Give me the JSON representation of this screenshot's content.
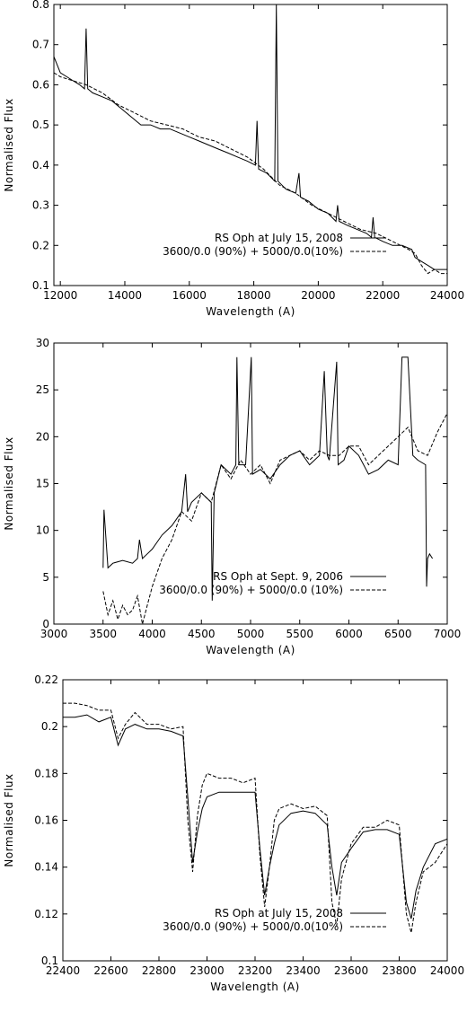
{
  "chart_data": [
    {
      "type": "line",
      "xlabel": "Wavelength (A)",
      "ylabel": "Normalised Flux",
      "xlim": [
        11800,
        24000
      ],
      "ylim": [
        0.1,
        0.8
      ],
      "xticks": [
        "12000",
        "14000",
        "16000",
        "18000",
        "20000",
        "22000",
        "24000"
      ],
      "yticks": [
        "0.1",
        "0.2",
        "0.3",
        "0.4",
        "0.5",
        "0.6",
        "0.7",
        "0.8"
      ],
      "legend_position": "bottom-right",
      "series": [
        {
          "name": "RS Oph at July 15, 2008",
          "style": "solid",
          "x": [
            11800,
            11900,
            12000,
            12200,
            12400,
            12600,
            12750,
            12800,
            12850,
            13000,
            13300,
            13600,
            13900,
            14200,
            14500,
            14800,
            15100,
            15400,
            15700,
            16000,
            16300,
            16600,
            16900,
            17200,
            17500,
            17800,
            18050,
            18100,
            18150,
            18400,
            18650,
            18700,
            18750,
            19000,
            19300,
            19400,
            19450,
            19700,
            20000,
            20300,
            20550,
            20600,
            20650,
            20900,
            21200,
            21500,
            21650,
            21700,
            21750,
            22000,
            22300,
            22600,
            22900,
            23000,
            23200,
            23400,
            23600,
            23800,
            24000
          ],
          "y": [
            0.67,
            0.65,
            0.63,
            0.62,
            0.61,
            0.6,
            0.59,
            0.74,
            0.59,
            0.58,
            0.57,
            0.56,
            0.54,
            0.52,
            0.5,
            0.5,
            0.49,
            0.49,
            0.48,
            0.47,
            0.46,
            0.45,
            0.44,
            0.43,
            0.42,
            0.41,
            0.4,
            0.51,
            0.39,
            0.38,
            0.36,
            0.8,
            0.36,
            0.34,
            0.33,
            0.38,
            0.32,
            0.31,
            0.29,
            0.28,
            0.26,
            0.3,
            0.26,
            0.25,
            0.24,
            0.23,
            0.22,
            0.27,
            0.22,
            0.21,
            0.2,
            0.2,
            0.19,
            0.17,
            0.16,
            0.15,
            0.14,
            0.14,
            0.14
          ]
        },
        {
          "name": "3600/0.0 (90%) + 5000/0.0(10%)",
          "style": "dashed",
          "x": [
            11800,
            12000,
            12400,
            12800,
            13300,
            13800,
            14300,
            14800,
            15300,
            15800,
            16300,
            16800,
            17300,
            17800,
            18300,
            18800,
            19300,
            19800,
            20300,
            20800,
            21300,
            21800,
            22300,
            22800,
            23000,
            23200,
            23400,
            23600,
            23800,
            24000
          ],
          "y": [
            0.63,
            0.62,
            0.61,
            0.6,
            0.58,
            0.55,
            0.53,
            0.51,
            0.5,
            0.49,
            0.47,
            0.46,
            0.44,
            0.42,
            0.39,
            0.35,
            0.33,
            0.3,
            0.28,
            0.26,
            0.24,
            0.23,
            0.21,
            0.19,
            0.18,
            0.15,
            0.13,
            0.14,
            0.13,
            0.13
          ]
        }
      ]
    },
    {
      "type": "line",
      "xlabel": "Wavelength (A)",
      "ylabel": "Normalised Flux",
      "xlim": [
        3000,
        7000
      ],
      "ylim": [
        0,
        30
      ],
      "xticks": [
        "3000",
        "3500",
        "4000",
        "4500",
        "5000",
        "5500",
        "6000",
        "6500",
        "7000"
      ],
      "yticks": [
        "0",
        "5",
        "10",
        "15",
        "20",
        "25",
        "30"
      ],
      "legend_position": "bottom-right",
      "series": [
        {
          "name": "RS Oph at Sept. 9, 2006",
          "style": "solid",
          "x": [
            3500,
            3510,
            3550,
            3600,
            3700,
            3800,
            3850,
            3870,
            3900,
            3950,
            4000,
            4100,
            4200,
            4300,
            4340,
            4360,
            4400,
            4500,
            4600,
            4610,
            4630,
            4700,
            4800,
            4850,
            4861,
            4880,
            4950,
            5007,
            5020,
            5100,
            5200,
            5300,
            5400,
            5500,
            5600,
            5700,
            5750,
            5780,
            5800,
            5876,
            5890,
            5950,
            6000,
            6100,
            6200,
            6300,
            6400,
            6500,
            6540,
            6600,
            6650,
            6700,
            6780,
            6790,
            6800,
            6820,
            6850
          ],
          "y": [
            6,
            12.2,
            6,
            6.5,
            6.8,
            6.5,
            7,
            9,
            7,
            7.5,
            8,
            9.5,
            10.5,
            12,
            16,
            12,
            13,
            14,
            13,
            2.5,
            14,
            17,
            16,
            17,
            28.5,
            17,
            17,
            28.5,
            16,
            16.5,
            15.5,
            17,
            18,
            18.5,
            17,
            18,
            27,
            18,
            17.5,
            28,
            17,
            17.5,
            19,
            18,
            16,
            16.5,
            17.5,
            17,
            28.5,
            28.5,
            18,
            17.5,
            17,
            4,
            7,
            7.5,
            7
          ]
        },
        {
          "name": "3600/0.0 (90%) + 5000/0.0 (10%)",
          "style": "dashed",
          "x": [
            3500,
            3550,
            3600,
            3650,
            3700,
            3750,
            3800,
            3850,
            3900,
            3950,
            4000,
            4100,
            4200,
            4300,
            4400,
            4500,
            4600,
            4700,
            4800,
            4900,
            5000,
            5100,
            5200,
            5300,
            5400,
            5500,
            5600,
            5700,
            5800,
            5900,
            6000,
            6100,
            6200,
            6300,
            6400,
            6500,
            6600,
            6700,
            6800,
            6900,
            7000
          ],
          "y": [
            3.5,
            1,
            2.5,
            0.5,
            2,
            1,
            1.5,
            3,
            0,
            2,
            4,
            7,
            9,
            12,
            11,
            14,
            13,
            17,
            15.5,
            17.5,
            16,
            17,
            15,
            17.5,
            18,
            18.5,
            17.5,
            18.5,
            18,
            18,
            19,
            19,
            17,
            18,
            19,
            20,
            21,
            18.5,
            18,
            20.5,
            22.5
          ]
        }
      ]
    },
    {
      "type": "line",
      "xlabel": "Wavelength (A)",
      "ylabel": "Normalised Flux",
      "xlim": [
        22400,
        24000
      ],
      "ylim": [
        0.1,
        0.22
      ],
      "xticks": [
        "22400",
        "22600",
        "22800",
        "23000",
        "23200",
        "23400",
        "23600",
        "23800",
        "24000"
      ],
      "yticks": [
        "0.1",
        "0.12",
        "0.14",
        "0.16",
        "0.18",
        "0.2",
        "0.22"
      ],
      "legend_position": "bottom-right",
      "series": [
        {
          "name": "RS Oph at July 15, 2008",
          "style": "solid",
          "x": [
            22400,
            22450,
            22500,
            22550,
            22600,
            22630,
            22660,
            22700,
            22750,
            22800,
            22850,
            22900,
            22920,
            22940,
            22960,
            22980,
            23000,
            23050,
            23100,
            23150,
            23200,
            23220,
            23240,
            23260,
            23280,
            23300,
            23350,
            23400,
            23450,
            23500,
            23520,
            23540,
            23560,
            23600,
            23650,
            23700,
            23750,
            23800,
            23830,
            23850,
            23870,
            23900,
            23950,
            24000
          ],
          "y": [
            0.204,
            0.204,
            0.205,
            0.202,
            0.204,
            0.192,
            0.199,
            0.201,
            0.199,
            0.199,
            0.198,
            0.196,
            0.17,
            0.142,
            0.155,
            0.165,
            0.17,
            0.172,
            0.172,
            0.172,
            0.172,
            0.148,
            0.128,
            0.14,
            0.15,
            0.158,
            0.163,
            0.164,
            0.163,
            0.158,
            0.14,
            0.128,
            0.142,
            0.148,
            0.155,
            0.156,
            0.156,
            0.154,
            0.125,
            0.118,
            0.13,
            0.14,
            0.15,
            0.152
          ]
        },
        {
          "name": "3600/0.0 (90%) + 5000/0.0(10%)",
          "style": "dashed",
          "x": [
            22400,
            22450,
            22500,
            22550,
            22600,
            22630,
            22660,
            22700,
            22750,
            22800,
            22850,
            22900,
            22920,
            22940,
            22960,
            22980,
            23000,
            23050,
            23100,
            23150,
            23200,
            23220,
            23240,
            23260,
            23280,
            23300,
            23350,
            23400,
            23450,
            23500,
            23520,
            23540,
            23560,
            23600,
            23650,
            23700,
            23750,
            23800,
            23830,
            23850,
            23870,
            23900,
            23950,
            24000
          ],
          "y": [
            0.21,
            0.21,
            0.209,
            0.207,
            0.207,
            0.195,
            0.201,
            0.206,
            0.201,
            0.201,
            0.199,
            0.2,
            0.16,
            0.138,
            0.162,
            0.175,
            0.18,
            0.178,
            0.178,
            0.176,
            0.178,
            0.145,
            0.123,
            0.14,
            0.16,
            0.165,
            0.167,
            0.165,
            0.166,
            0.162,
            0.125,
            0.115,
            0.135,
            0.15,
            0.157,
            0.157,
            0.16,
            0.158,
            0.12,
            0.112,
            0.125,
            0.138,
            0.142,
            0.15
          ]
        }
      ]
    }
  ]
}
